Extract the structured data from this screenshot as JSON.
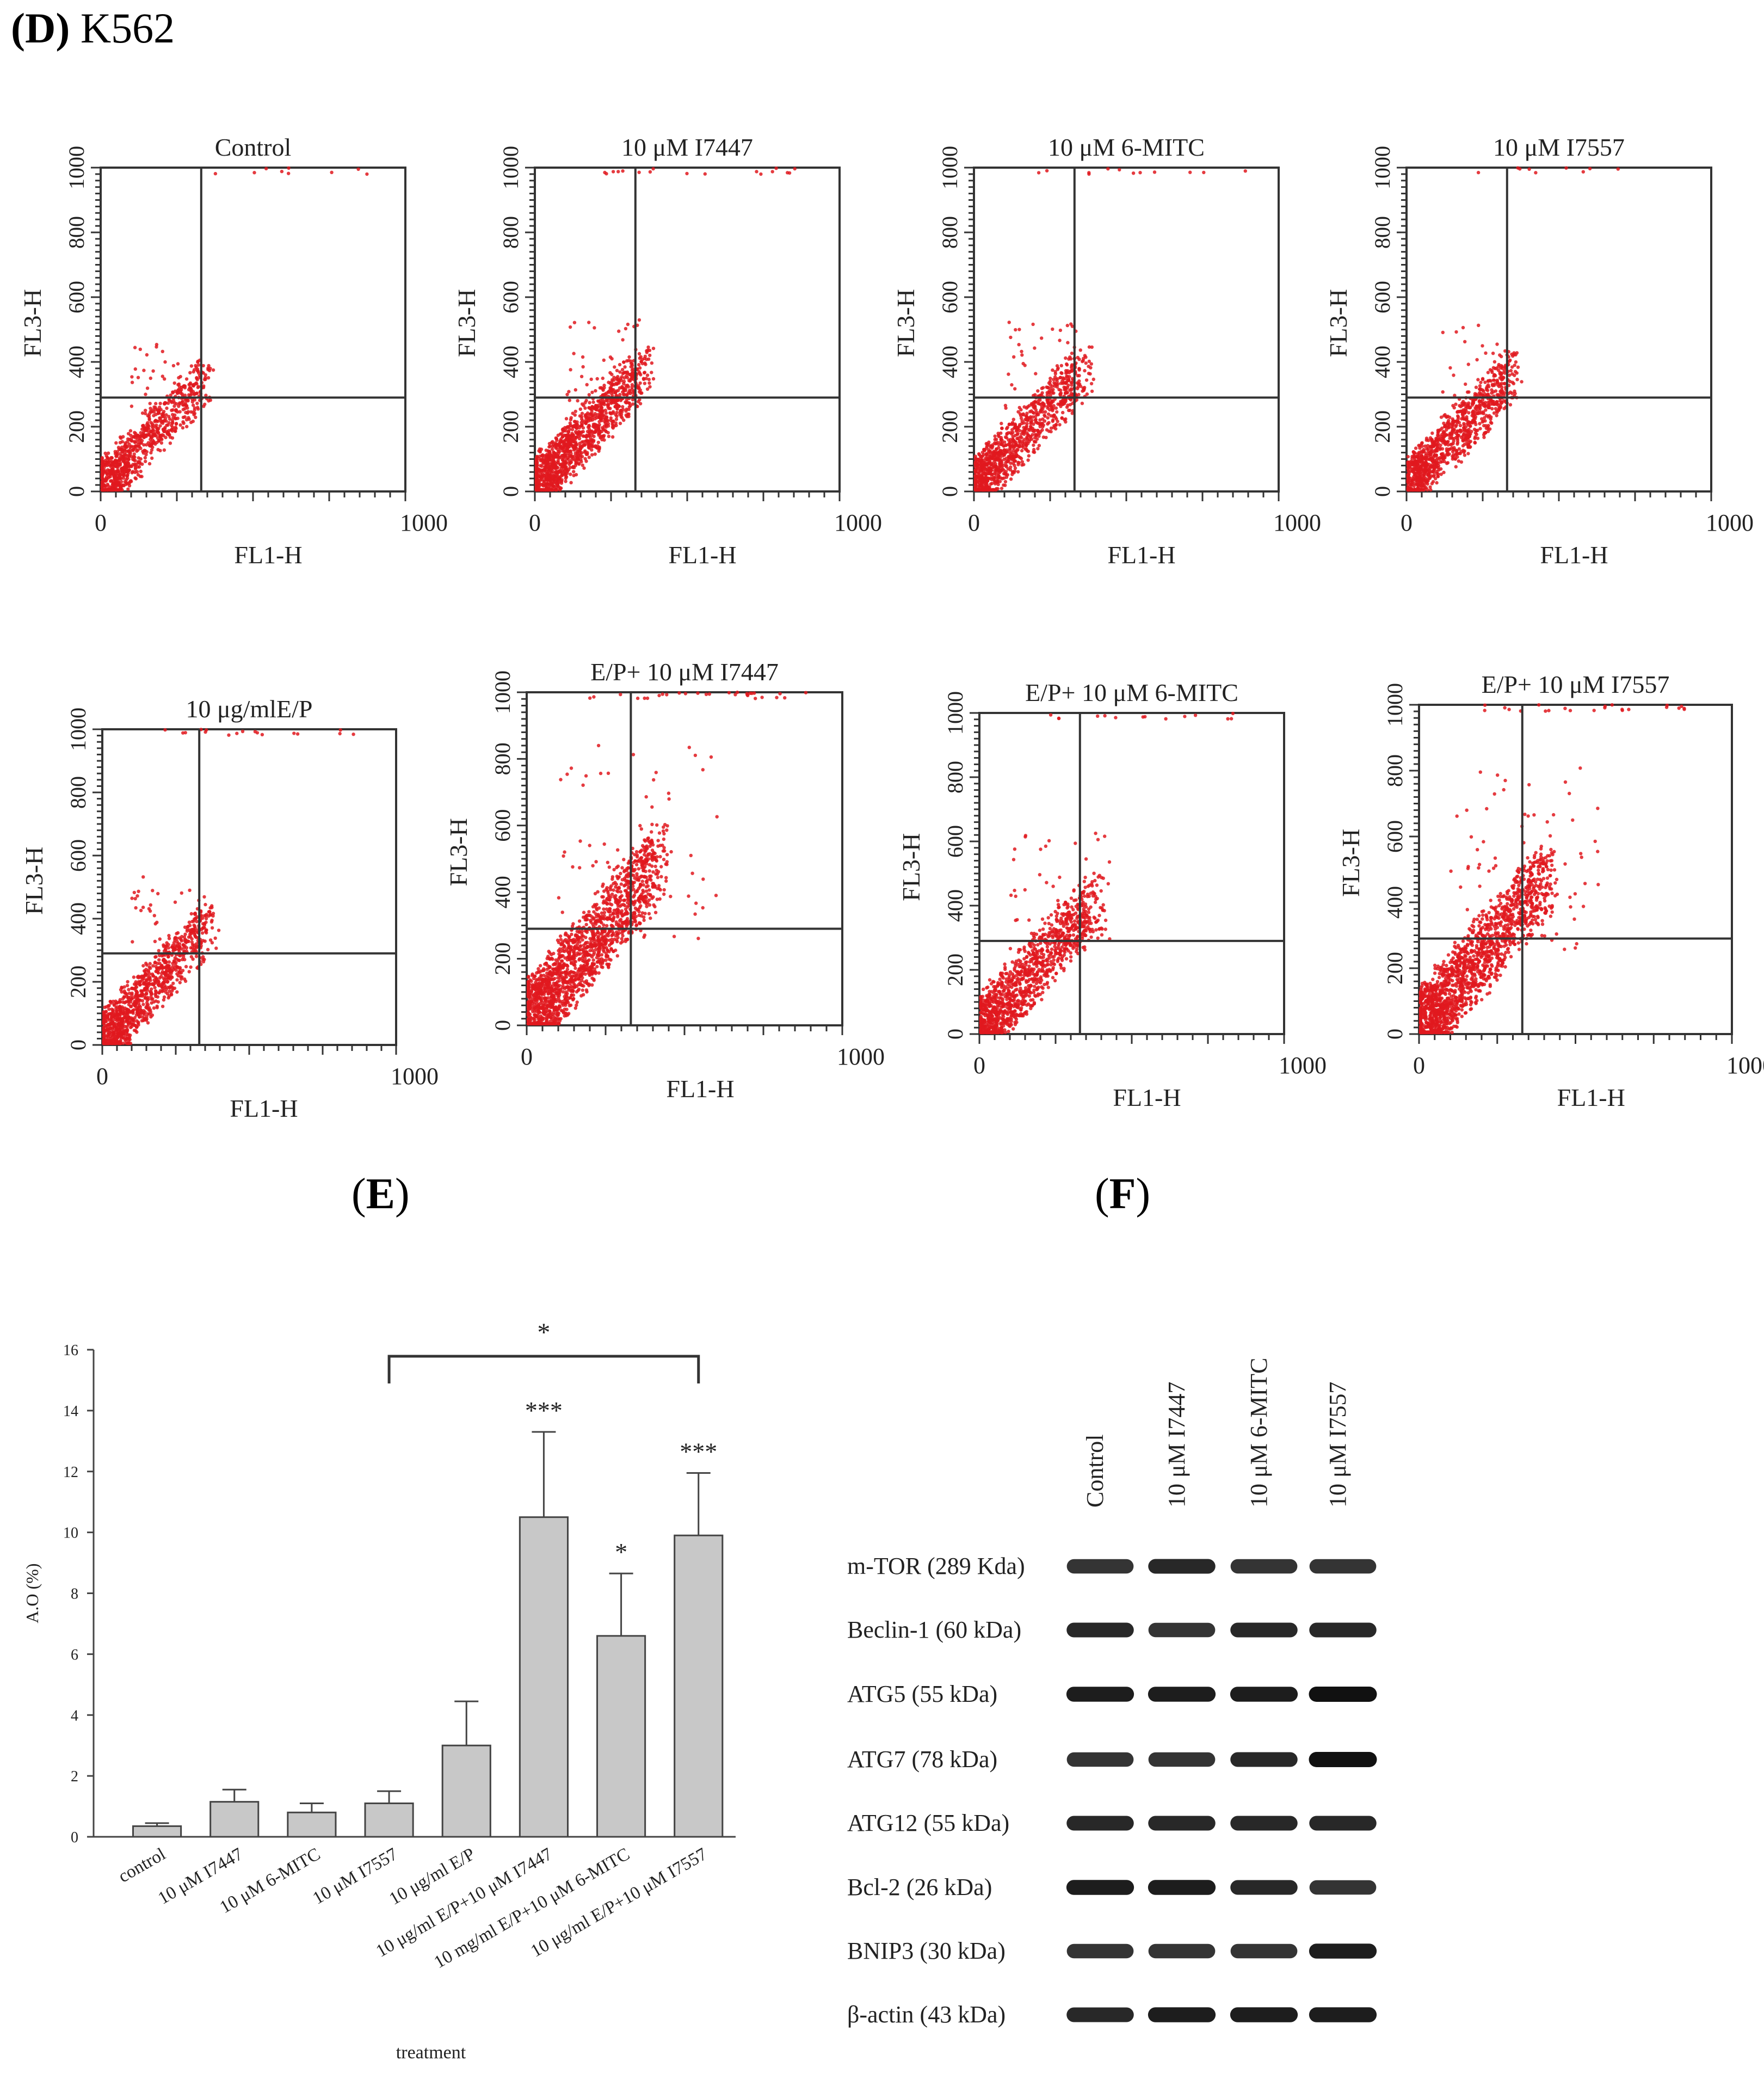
{
  "panels": {
    "d": {
      "letter": "D",
      "suffix": " K562"
    },
    "e": {
      "letter": "E"
    },
    "f": {
      "letter": "F"
    }
  },
  "scatter_axes": {
    "xlabel": "FL1-H",
    "ylabel": "FL3-H",
    "x_ticks": [
      "0",
      "1000"
    ],
    "y_ticks": [
      "0",
      "200",
      "400",
      "600",
      "800",
      "1000"
    ]
  },
  "chart_data": [
    {
      "type": "scatter",
      "title": "Control",
      "xlim": [
        0,
        1000
      ],
      "ylim": [
        0,
        1000
      ],
      "quadrant_x": 330,
      "quadrant_y": 290,
      "spread": 0.3,
      "count": 900
    },
    {
      "type": "scatter",
      "title": "10 μM I7447",
      "xlim": [
        0,
        1000
      ],
      "ylim": [
        0,
        1000
      ],
      "quadrant_x": 330,
      "quadrant_y": 290,
      "spread": 0.42,
      "count": 1300
    },
    {
      "type": "scatter",
      "title": "10 μM 6-MITC",
      "xlim": [
        0,
        1000
      ],
      "ylim": [
        0,
        1000
      ],
      "quadrant_x": 330,
      "quadrant_y": 290,
      "spread": 0.4,
      "count": 1100
    },
    {
      "type": "scatter",
      "title": "10 μM I7557",
      "xlim": [
        0,
        1000
      ],
      "ylim": [
        0,
        1000
      ],
      "quadrant_x": 330,
      "quadrant_y": 290,
      "spread": 0.38,
      "count": 1100
    },
    {
      "type": "scatter",
      "title": "10 μg/mlE/P",
      "xlim": [
        0,
        1000
      ],
      "ylim": [
        0,
        1000
      ],
      "quadrant_x": 330,
      "quadrant_y": 290,
      "spread": 0.42,
      "count": 1100
    },
    {
      "type": "scatter",
      "title": "E/P+ 10 μM I7447",
      "xlim": [
        0,
        1000
      ],
      "ylim": [
        0,
        1000
      ],
      "quadrant_x": 330,
      "quadrant_y": 290,
      "spread": 0.85,
      "count": 1900
    },
    {
      "type": "scatter",
      "title": "E/P+ 10 μM 6-MITC",
      "xlim": [
        0,
        1000
      ],
      "ylim": [
        0,
        1000
      ],
      "quadrant_x": 330,
      "quadrant_y": 290,
      "spread": 0.55,
      "count": 1300
    },
    {
      "type": "scatter",
      "title": "E/P+ 10 μM I7557",
      "xlim": [
        0,
        1000
      ],
      "ylim": [
        0,
        1000
      ],
      "quadrant_x": 330,
      "quadrant_y": 290,
      "spread": 0.8,
      "count": 1800
    },
    {
      "type": "bar",
      "title": "",
      "xlabel": "treatment",
      "ylabel": "A.O (%)",
      "ylim": [
        0,
        16
      ],
      "y_ticks": [
        "0",
        "2",
        "4",
        "6",
        "8",
        "10",
        "12",
        "14",
        "16"
      ],
      "categories": [
        "control",
        "10 μM I7447",
        "10 μM 6-MITC",
        "10 μM I7557",
        "10 μg/ml E/P",
        "10 μg/ml E/P+10 μM I7447",
        "10 mg/ml E/P+10 μM 6-MITC",
        "10 μg/ml E/P+10 μM I7557"
      ],
      "values": [
        0.35,
        1.15,
        0.8,
        1.1,
        3.0,
        10.5,
        6.6,
        9.9
      ],
      "errors": [
        0.1,
        0.4,
        0.3,
        0.4,
        1.45,
        2.8,
        2.05,
        2.05
      ],
      "significance": [
        "",
        "",
        "",
        "",
        "",
        "***",
        "*",
        "***"
      ],
      "bracket": {
        "from": 3,
        "to": 7,
        "label": "*"
      }
    }
  ],
  "western_blot": {
    "lanes": [
      "Control",
      "10 μM I7447",
      "10 μM 6-MITC",
      "10 μM I7557"
    ],
    "proteins": [
      "m-TOR (289 Kda)",
      "Beclin-1 (60 kDa)",
      "ATG5 (55 kDa)",
      "ATG7 (78 kDa)",
      "ATG12 (55 kDa)",
      "Bcl-2 (26 kDa)",
      "BNIP3 (30 kDa)",
      "β-actin (43 kDa)"
    ],
    "intensity": [
      [
        0.85,
        0.9,
        0.85,
        0.85
      ],
      [
        0.9,
        0.85,
        0.9,
        0.9
      ],
      [
        0.95,
        0.95,
        0.95,
        1.0
      ],
      [
        0.85,
        0.85,
        0.9,
        1.0
      ],
      [
        0.9,
        0.9,
        0.9,
        0.9
      ],
      [
        0.95,
        0.95,
        0.9,
        0.85
      ],
      [
        0.85,
        0.85,
        0.85,
        0.95
      ],
      [
        0.9,
        0.95,
        0.95,
        0.95
      ]
    ]
  }
}
